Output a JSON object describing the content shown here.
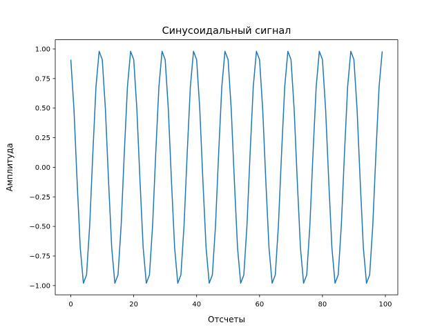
{
  "chart_data": {
    "type": "line",
    "title": "Синусоидальный сигнал",
    "xlabel": "Отсчеты",
    "ylabel": "Амплитуда",
    "xlim": [
      -4.95,
      103.95
    ],
    "ylim": [
      -1.078,
      1.078
    ],
    "xticks": [
      0,
      20,
      40,
      60,
      80,
      100
    ],
    "xtick_labels": [
      "0",
      "20",
      "40",
      "60",
      "80",
      "100"
    ],
    "yticks": [
      1.0,
      0.75,
      0.5,
      0.25,
      0.0,
      -0.25,
      -0.5,
      -0.75,
      -1.0
    ],
    "ytick_labels": [
      "1.00",
      "0.75",
      "0.50",
      "0.25",
      "0.00",
      "−0.25",
      "−0.50",
      "−0.75",
      "−1.00"
    ],
    "grid": false,
    "series": [
      {
        "color": "#1f77b4",
        "x_start": 0,
        "x_step": 1,
        "values": [
          0.91,
          0.49,
          -0.12,
          -0.68,
          -0.98,
          -0.91,
          -0.49,
          0.12,
          0.68,
          0.98,
          0.91,
          0.49,
          -0.12,
          -0.68,
          -0.98,
          -0.91,
          -0.49,
          0.12,
          0.68,
          0.98,
          0.91,
          0.49,
          -0.12,
          -0.68,
          -0.98,
          -0.91,
          -0.49,
          0.12,
          0.68,
          0.98,
          0.91,
          0.49,
          -0.12,
          -0.68,
          -0.98,
          -0.91,
          -0.49,
          0.12,
          0.68,
          0.98,
          0.91,
          0.49,
          -0.12,
          -0.68,
          -0.98,
          -0.91,
          -0.49,
          0.12,
          0.68,
          0.98,
          0.91,
          0.49,
          -0.12,
          -0.68,
          -0.98,
          -0.91,
          -0.49,
          0.12,
          0.68,
          0.98,
          0.91,
          0.49,
          -0.12,
          -0.68,
          -0.98,
          -0.91,
          -0.49,
          0.12,
          0.68,
          0.98,
          0.91,
          0.49,
          -0.12,
          -0.68,
          -0.98,
          -0.91,
          -0.49,
          0.12,
          0.68,
          0.98,
          0.91,
          0.49,
          -0.12,
          -0.68,
          -0.98,
          -0.91,
          -0.49,
          0.12,
          0.68,
          0.98,
          0.91,
          0.49,
          -0.12,
          -0.68,
          -0.98,
          -0.91,
          -0.49,
          0.12,
          0.68,
          0.98
        ]
      }
    ]
  }
}
